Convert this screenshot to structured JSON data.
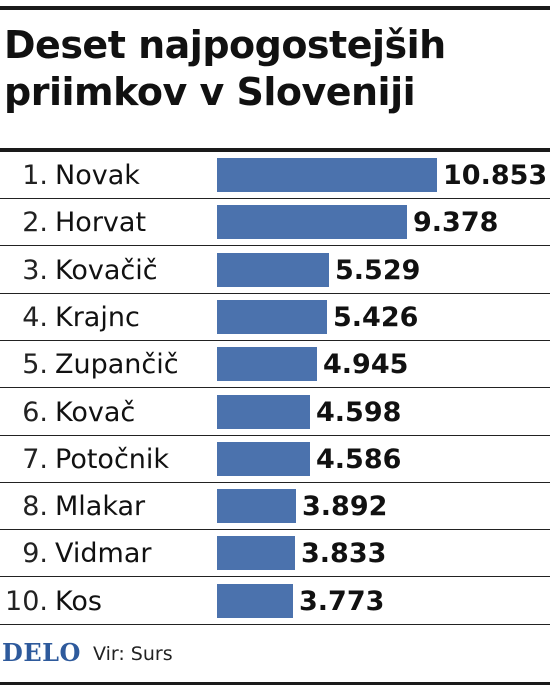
{
  "title": "Deset najpogostejših priimkov v Sloveniji",
  "brand": "DELO",
  "source": "Vir: Surs",
  "colors": {
    "bar": "#4b72ad",
    "brand": "#2e5a9c",
    "text": "#111111"
  },
  "chart_data": {
    "type": "bar",
    "orientation": "horizontal",
    "title": "Deset najpogostejših priimkov v Sloveniji",
    "xlabel": "",
    "ylabel": "",
    "grid": false,
    "legend": "none",
    "xlim": [
      0,
      10853
    ],
    "rank_labels": [
      "1.",
      "2.",
      "3.",
      "4.",
      "5.",
      "6.",
      "7.",
      "8.",
      "9.",
      "10."
    ],
    "categories": [
      "Novak",
      "Horvat",
      "Kovačič",
      "Krajnc",
      "Zupančič",
      "Kovač",
      "Potočnik",
      "Mlakar",
      "Vidmar",
      "Kos"
    ],
    "values": [
      10853,
      9378,
      5529,
      5426,
      4945,
      4598,
      4586,
      3892,
      3833,
      3773
    ],
    "value_labels": [
      "10.853",
      "9.378",
      "5.529",
      "5.426",
      "4.945",
      "4.598",
      "4.586",
      "3.892",
      "3.833",
      "3.773"
    ]
  }
}
